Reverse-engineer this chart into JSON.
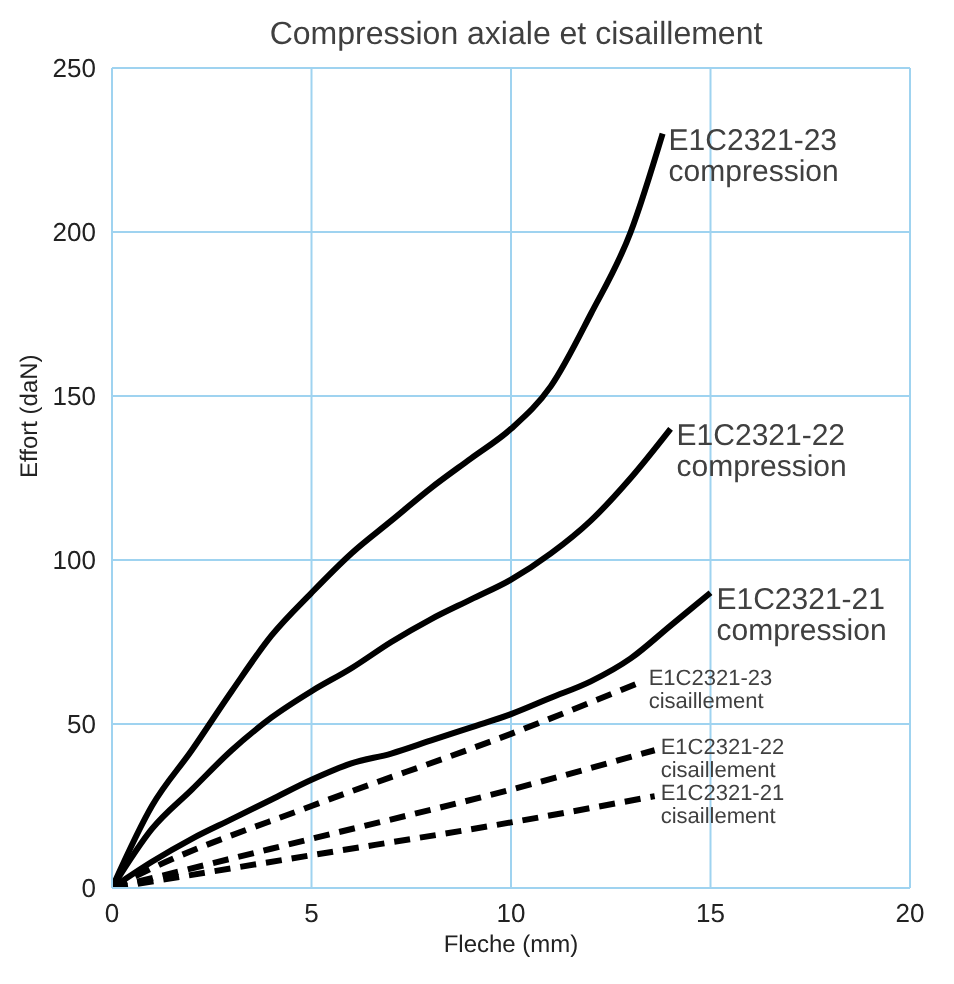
{
  "chart_data": {
    "type": "line",
    "title": "Compression axiale et cisaillement",
    "xlabel": "Fleche (mm)",
    "ylabel": "Effort (daN)",
    "xlim": [
      0,
      20
    ],
    "xticks": [
      0,
      5,
      10,
      15,
      20
    ],
    "ylim": [
      0,
      250
    ],
    "yticks": [
      0,
      50,
      100,
      150,
      200,
      250
    ],
    "grid": true,
    "legend": false,
    "marker": "none",
    "series": [
      {
        "name": "E1C2321-23 compression",
        "color": "#000000",
        "line_style": "solid",
        "x": [
          0,
          1,
          2,
          3,
          4,
          5,
          6,
          7,
          8,
          9,
          10,
          11,
          12,
          13,
          13.8
        ],
        "values": [
          0,
          25,
          42,
          60,
          77,
          90,
          102,
          112,
          122,
          131,
          140,
          153,
          175,
          200,
          230
        ]
      },
      {
        "name": "E1C2321-22 compression",
        "color": "#000000",
        "line_style": "solid",
        "x": [
          0,
          1,
          2,
          3,
          4,
          5,
          6,
          7,
          8,
          9,
          10,
          11,
          12,
          13,
          14
        ],
        "values": [
          0,
          18,
          30,
          42,
          52,
          60,
          67,
          75,
          82,
          88,
          94,
          102,
          112,
          125,
          140
        ]
      },
      {
        "name": "E1C2321-21 compression",
        "color": "#000000",
        "line_style": "solid",
        "x": [
          0,
          1,
          2,
          3,
          4,
          5,
          6,
          7,
          8,
          9,
          10,
          11,
          12,
          13,
          14,
          15
        ],
        "values": [
          0,
          8,
          15,
          21,
          27,
          33,
          38,
          41,
          45,
          49,
          53,
          58,
          63,
          70,
          80,
          90
        ]
      },
      {
        "name": "E1C2321-23 cisaillement",
        "color": "#000000",
        "line_style": "dashed",
        "x": [
          0,
          1,
          5,
          10,
          13.3
        ],
        "values": [
          0,
          6,
          25,
          47,
          63
        ]
      },
      {
        "name": "E1C2321-22 cisaillement",
        "color": "#000000",
        "line_style": "dashed",
        "x": [
          0,
          5,
          10,
          13.6
        ],
        "values": [
          0,
          15,
          30,
          42
        ]
      },
      {
        "name": "E1C2321-21 cisaillement",
        "color": "#000000",
        "line_style": "dashed",
        "x": [
          0,
          5,
          10,
          13.6
        ],
        "values": [
          0,
          10,
          20,
          28
        ]
      }
    ]
  }
}
